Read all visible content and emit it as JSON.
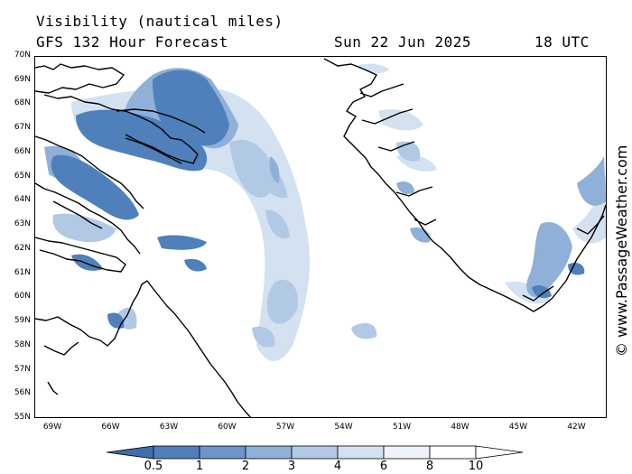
{
  "header": {
    "title": "Visibility (nautical miles)",
    "subtitle": "GFS 132 Hour Forecast",
    "date": "Sun 22 Jun 2025",
    "time": "18 UTC"
  },
  "credit": "© www.PassageWeather.com",
  "map": {
    "lat_labels": [
      "70N",
      "69N",
      "68N",
      "67N",
      "66N",
      "65N",
      "64N",
      "63N",
      "62N",
      "61N",
      "60N",
      "59N",
      "58N",
      "57N",
      "56N",
      "55N"
    ],
    "lon_labels": [
      "69W",
      "66W",
      "63W",
      "60W",
      "57W",
      "54W",
      "51W",
      "48W",
      "45W",
      "42W"
    ],
    "lat_range": [
      55,
      70
    ],
    "lon_range": [
      -69.8,
      -40.7
    ]
  },
  "legend": {
    "labels": [
      "0.5",
      "1",
      "2",
      "3",
      "4",
      "6",
      "8",
      "10"
    ],
    "colors": [
      "#3f6fab",
      "#4f80bc",
      "#6c96c9",
      "#8fb0d8",
      "#b2c9e6",
      "#d3e1f1",
      "#eef3fa",
      "#ffffff",
      "#ffffff"
    ]
  }
}
